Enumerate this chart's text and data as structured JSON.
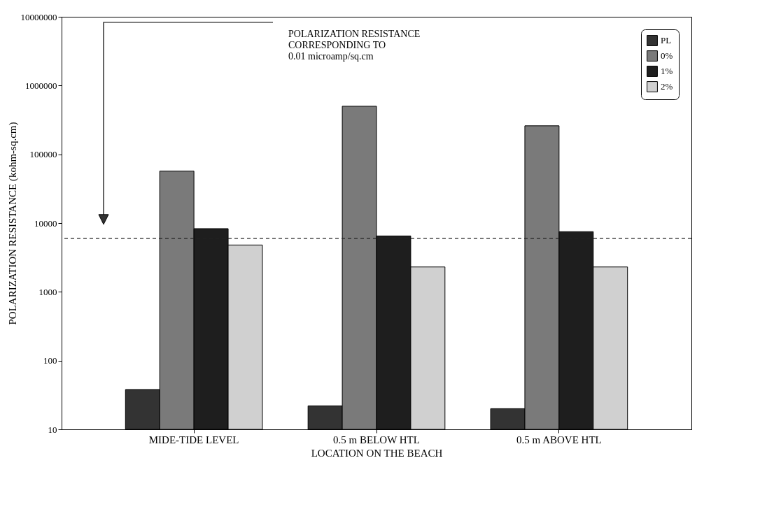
{
  "chart_data": {
    "type": "bar",
    "xlabel": "LOCATION ON THE BEACH",
    "ylabel": "POLARIZATION RESISTANCE (kohm-sq.cm)",
    "categories": [
      "MIDE-TIDE LEVEL",
      "0.5 m BELOW HTL",
      "0.5 m ABOVE HTL"
    ],
    "series": [
      {
        "name": "PL",
        "color": "#333333",
        "values": [
          38,
          22,
          20
        ]
      },
      {
        "name": "0%",
        "color": "#7a7a7a",
        "values": [
          57000,
          500000,
          260000
        ]
      },
      {
        "name": "1%",
        "color": "#1e1e1e",
        "values": [
          8300,
          6500,
          7500
        ]
      },
      {
        "name": "2%",
        "color": "#d0d0d0",
        "values": [
          4800,
          2300,
          2300
        ]
      }
    ],
    "log": "y",
    "ylim": [
      10,
      10000000
    ],
    "yticks": [
      10,
      100,
      1000,
      10000,
      100000,
      1000000,
      10000000
    ],
    "ref_lines": [
      {
        "axis": "y",
        "value": 6000,
        "line_style": "dashed",
        "color": "#222222"
      }
    ],
    "annotations": [
      "POLARIZATION RESISTANCE\nCORRESPONDING TO\n0.01 microamp/sq.cm"
    ],
    "legend": "top right",
    "grid": false
  }
}
